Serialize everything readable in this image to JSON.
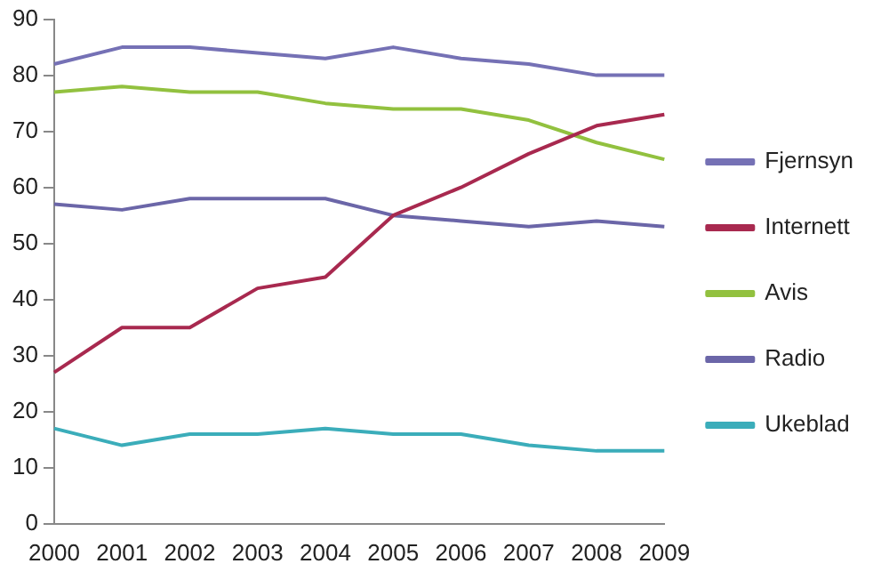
{
  "chart_data": {
    "type": "line",
    "categories": [
      "2000",
      "2001",
      "2002",
      "2003",
      "2004",
      "2005",
      "2006",
      "2007",
      "2008",
      "2009"
    ],
    "series": [
      {
        "name": "Fjernsyn",
        "color": "#7571b5",
        "values": [
          82,
          85,
          85,
          84,
          83,
          85,
          83,
          82,
          80,
          80
        ]
      },
      {
        "name": "Internett",
        "color": "#a8294f",
        "values": [
          27,
          35,
          35,
          42,
          44,
          55,
          60,
          66,
          71,
          73
        ]
      },
      {
        "name": "Avis",
        "color": "#92c13f",
        "values": [
          77,
          78,
          77,
          77,
          75,
          74,
          74,
          72,
          68,
          65
        ]
      },
      {
        "name": "Radio",
        "color": "#6b66a8",
        "values": [
          57,
          56,
          58,
          58,
          58,
          55,
          54,
          53,
          54,
          53
        ]
      },
      {
        "name": "Ukeblad",
        "color": "#3badba",
        "values": [
          17,
          14,
          16,
          16,
          17,
          16,
          16,
          14,
          13,
          13
        ]
      }
    ],
    "ylim": [
      0,
      90
    ],
    "yticks": [
      0,
      10,
      20,
      30,
      40,
      50,
      60,
      70,
      80,
      90
    ],
    "grid": false,
    "legend": "right",
    "marker": "none",
    "line_style": "solid"
  }
}
